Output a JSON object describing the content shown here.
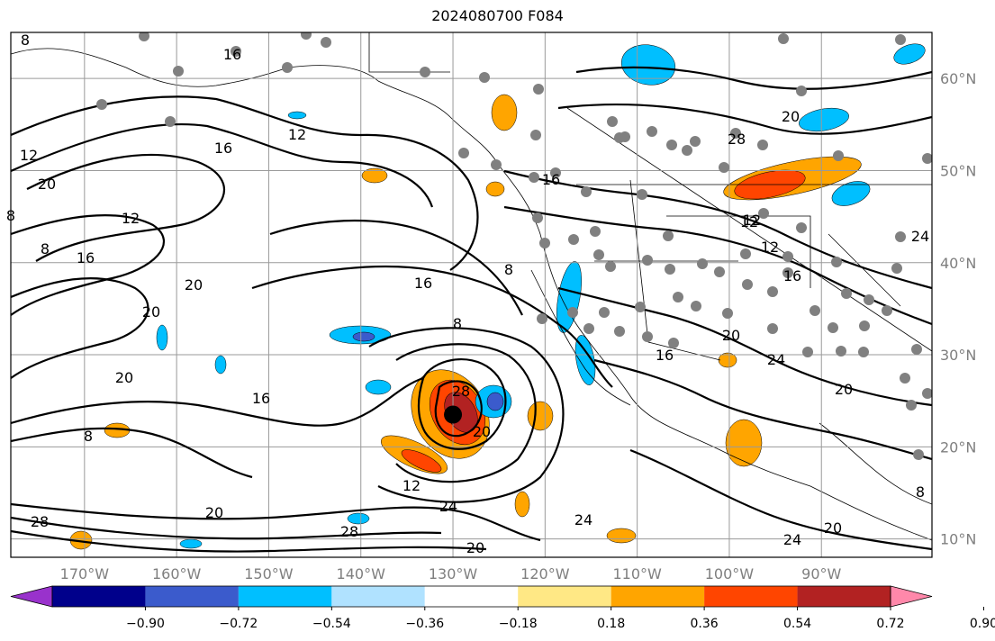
{
  "title": "2024080700 F084",
  "map": {
    "lon_range": [
      -178,
      -78
    ],
    "lat_range": [
      8,
      65
    ],
    "lon_labels": [
      "170°W",
      "160°W",
      "150°W",
      "140°W",
      "130°W",
      "120°W",
      "110°W",
      "100°W",
      "90°W"
    ],
    "lat_labels": [
      "60°N",
      "50°N",
      "40°N",
      "30°N",
      "20°N",
      "10°N"
    ],
    "contour_labels": [
      "8",
      "12",
      "16",
      "20",
      "12",
      "16",
      "8",
      "20",
      "20",
      "20",
      "16",
      "8",
      "28",
      "12",
      "24",
      "28",
      "20",
      "16",
      "12",
      "8",
      "16",
      "20",
      "8",
      "12",
      "12",
      "16",
      "20",
      "24",
      "20",
      "16",
      "24",
      "28",
      "20",
      "8",
      "20",
      "8",
      "12",
      "16",
      "20",
      "24",
      "28",
      "24"
    ],
    "storm_center": {
      "lon": -130,
      "lat": 23.5
    },
    "colors": {
      "orange": "#ffa500",
      "red_orange": "#ff4500",
      "dark_red": "#b22222",
      "light_blue": "#00bfff",
      "pale_blue": "#add8e6",
      "blue": "#3b5bcc",
      "station_dot": "#808080"
    }
  },
  "colorbar": {
    "ticks": [
      "−0.90",
      "−0.72",
      "−0.54",
      "−0.36",
      "−0.18",
      "0.18",
      "0.36",
      "0.54",
      "0.72",
      "0.90"
    ],
    "colors": [
      "#9932cc",
      "#00008b",
      "#3b5bcc",
      "#00bfff",
      "#b0e2ff",
      "#ffffff",
      "#ffe885",
      "#ffa500",
      "#ff4500",
      "#b22222",
      "#ff88aa"
    ]
  }
}
